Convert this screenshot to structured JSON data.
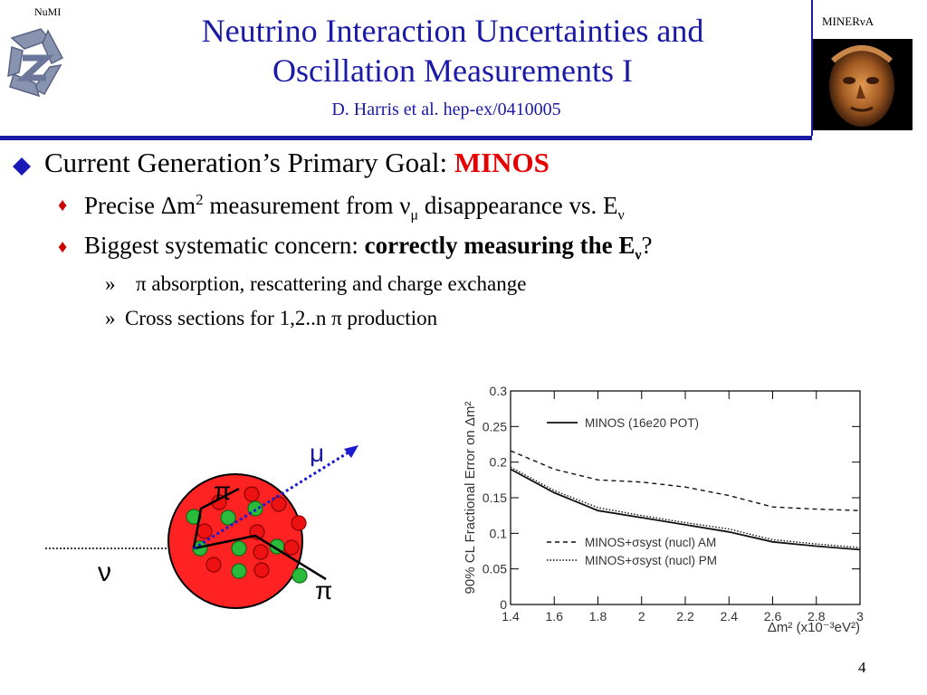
{
  "header": {
    "left_label": "NuMI",
    "right_label": "MINERνA",
    "title_line1": "Neutrino Interaction Uncertainties and",
    "title_line2": "Oscillation Measurements I",
    "subtitle": "D. Harris et al. hep-ex/0410005"
  },
  "bullets": {
    "main_text": "Current Generation’s Primary Goal: ",
    "main_highlight": "MINOS",
    "sub1": {
      "pre": "Precise Δm",
      "sup": "2",
      "mid": " measurement from ν",
      "sub_mu": "μ",
      "post": " disappearance vs. E",
      "sub_nu": "ν"
    },
    "sub2": {
      "pre": "Biggest systematic concern: ",
      "bold": "correctly measuring the E",
      "sub_nu": "ν",
      "post": "?"
    },
    "subsub_marker": "»",
    "subsub1": "π absorption, rescattering and charge exchange",
    "subsub2": "Cross sections for 1,2..n π production"
  },
  "diagram": {
    "mu_label": "μ",
    "pi_top_label": "π",
    "nu_label": "ν",
    "pi_bottom_label": "π",
    "colors": {
      "nucleus": "#ff2222",
      "nucleon_red": "#ee1111",
      "nucleon_green": "#2bbb3a",
      "muon_track": "#1a1ad0",
      "mu_label": "#1a1aa6"
    }
  },
  "chart_data": {
    "type": "line",
    "xlabel": "Δm² (x10⁻³eV²)",
    "ylabel": "90% CL Fractional Error on Δm²",
    "xlim": [
      1.4,
      3.0
    ],
    "ylim": [
      0,
      0.3
    ],
    "x_ticks": [
      "1.4",
      "1.6",
      "1.8",
      "2",
      "2.2",
      "2.4",
      "2.6",
      "2.8",
      "3"
    ],
    "y_ticks": [
      "0",
      "0.05",
      "0.1",
      "0.15",
      "0.2",
      "0.25",
      "0.3"
    ],
    "series": [
      {
        "name": "MINOS (16e20 POT)",
        "style": "solid",
        "x": [
          1.4,
          1.6,
          1.8,
          2.0,
          2.2,
          2.4,
          2.6,
          2.8,
          3.0
        ],
        "y": [
          0.19,
          0.157,
          0.132,
          0.122,
          0.112,
          0.102,
          0.088,
          0.082,
          0.077
        ]
      },
      {
        "name": "MINOS+σsyst (nucl) AM",
        "style": "dashed",
        "x": [
          1.4,
          1.6,
          1.8,
          2.0,
          2.2,
          2.4,
          2.6,
          2.8,
          3.0
        ],
        "y": [
          0.216,
          0.19,
          0.175,
          0.172,
          0.165,
          0.153,
          0.137,
          0.134,
          0.132
        ]
      },
      {
        "name": "MINOS+σsyst (nucl) PM",
        "style": "dotted",
        "x": [
          1.4,
          1.6,
          1.8,
          2.0,
          2.2,
          2.4,
          2.6,
          2.8,
          3.0
        ],
        "y": [
          0.193,
          0.16,
          0.136,
          0.125,
          0.115,
          0.106,
          0.091,
          0.085,
          0.08
        ]
      }
    ],
    "grid": false,
    "legend_position": "top-right"
  },
  "footer": {
    "page_number": "4"
  }
}
